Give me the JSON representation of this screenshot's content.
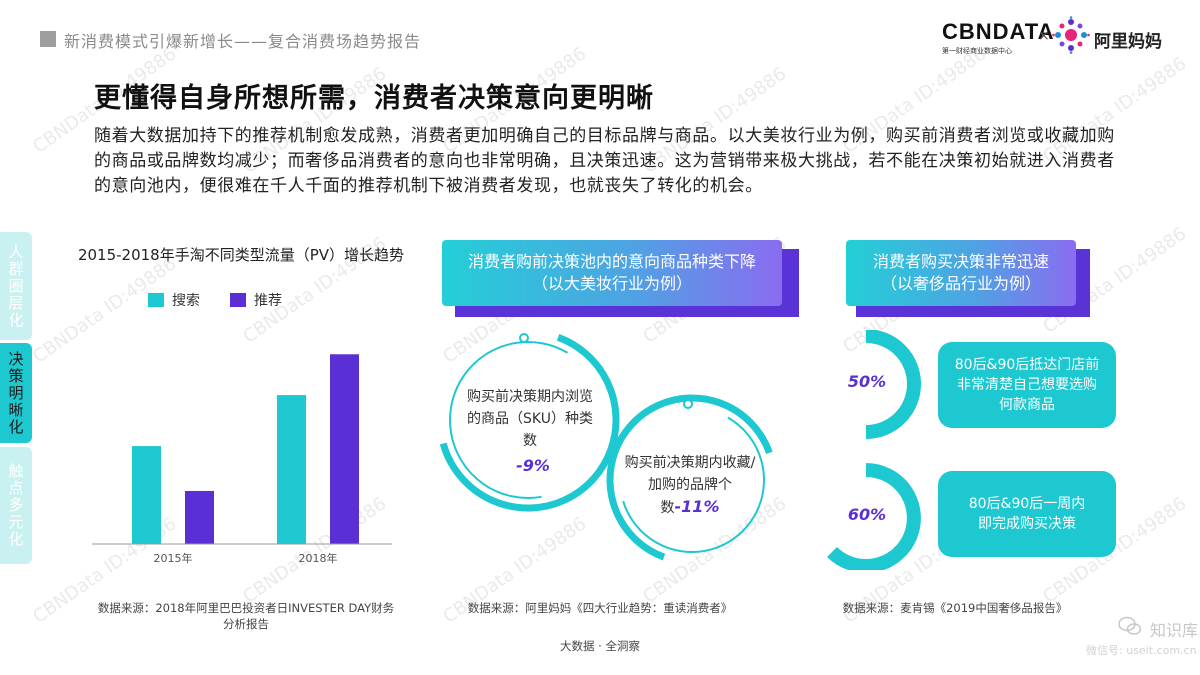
{
  "header": {
    "report_title": "新消费模式引爆新增长——复合消费场趋势报告",
    "logo_cbn": "CBNDATA",
    "logo_cbn_sub": "第一财经商业数据中心",
    "logo_separator": "×",
    "logo_partner": "阿里妈妈"
  },
  "headline": "更懂得自身所想所需，消费者决策意向更明晰",
  "intro": "随着大数据加持下的推荐机制愈发成熟，消费者更加明确自己的目标品牌与商品。以大美妆行业为例，购买前消费者浏览或收藏加购的商品或品牌数均减少；而奢侈品消费者的意向也非常明确，且决策迅速。这为营销带来极大挑战，若不能在决策初始就进入消费者的意向池内，便很难在千人千面的推荐机制下被消费者发现，也就丧失了转化的机会。",
  "side_tabs": [
    "人群圈层化",
    "决策明晰化",
    "触点多元化"
  ],
  "chart_data": {
    "type": "bar",
    "title": "2015-2018年手淘不同类型流量（PV）增长趋势",
    "categories": [
      "2015年",
      "2018年"
    ],
    "series": [
      {
        "name": "搜索",
        "values": [
          48,
          73
        ],
        "color": "#1ec8d0"
      },
      {
        "name": "推荐",
        "values": [
          26,
          93
        ],
        "color": "#5a2fd4"
      }
    ],
    "ylim": [
      0,
      100
    ],
    "grid": false,
    "legend": "top",
    "source": "数据来源：2018年阿里巴巴投资者日INVESTER DAY财务分析报告"
  },
  "middle": {
    "banner_line1": "消费者购前决策池内的意向商品种类下降",
    "banner_line2": "（以大美妆行业为例）",
    "circle1_text": "购买前决策期内浏览的商品（SKU）种类数",
    "circle1_pct": "-9%",
    "circle2_text": "购买前决策期内收藏/加购的品牌个数",
    "circle2_pct": "-11%",
    "source": "数据来源：阿里妈妈《四大行业趋势：重读消费者》"
  },
  "right": {
    "banner_line1": "消费者购买决策非常迅速",
    "banner_line2": "（以奢侈品行业为例）",
    "stat1_pct": "50%",
    "stat1_value": 0.5,
    "stat1_text": "80后&90后抵达门店前非常清楚自己想要选购何款商品",
    "stat2_pct": "60%",
    "stat2_value": 0.6,
    "stat2_text": "80后&90后一周内即完成购买决策",
    "source": "数据来源：麦肯锡《2019中国奢侈品报告》"
  },
  "footer": {
    "center": "大数据 · 全洞察",
    "brand_watermark": "知识库",
    "wechat_watermark": "微信号: useit.com.cn"
  },
  "watermark_text": "CBNData ID:49886",
  "colors": {
    "teal": "#1ec8d0",
    "purple": "#5a2fd4"
  }
}
